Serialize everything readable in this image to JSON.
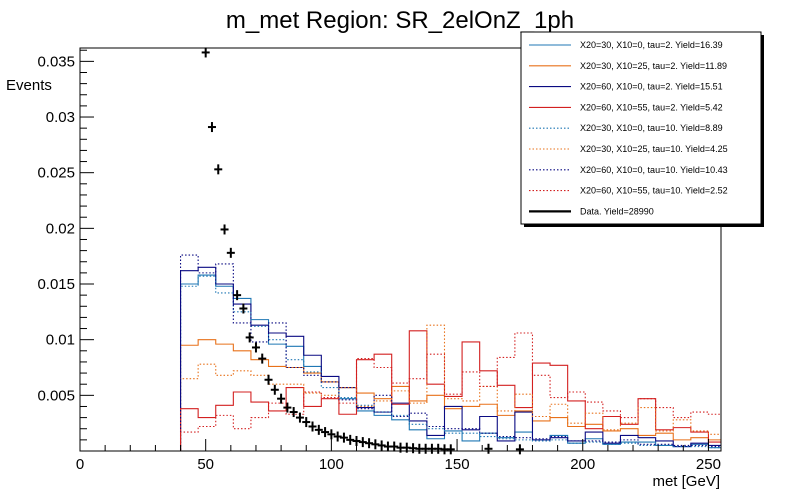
{
  "chart_data": {
    "type": "histogram",
    "title": "m_met Region: SR_2elOnZ_1ph",
    "xlabel": "met [GeV]",
    "ylabel": "Events",
    "xlim": [
      0,
      255
    ],
    "ylim": [
      0,
      0.0362
    ],
    "xticks": [
      0,
      50,
      100,
      150,
      200,
      250
    ],
    "xtick_labels": [
      "0",
      "50",
      "100",
      "150",
      "200",
      "250"
    ],
    "yticks": [
      0.005,
      0.01,
      0.015,
      0.02,
      0.025,
      0.03,
      0.035
    ],
    "ytick_labels": [
      "0.005",
      "0.01",
      "0.015",
      "0.02",
      "0.025",
      "0.03",
      "0.035"
    ],
    "bin_edges": [
      40,
      47,
      54,
      61,
      68,
      75,
      82,
      89,
      96,
      103,
      110,
      117,
      124,
      131,
      138,
      145,
      152,
      159,
      166,
      173,
      180,
      187,
      194,
      201,
      208,
      215,
      222,
      229,
      236,
      243,
      250,
      255
    ],
    "series": [
      {
        "name": "X20=30, X10=0, tau=2. Yield=16.39",
        "color": "#1f77b4",
        "style": "solid",
        "values": [
          0.015,
          0.0158,
          0.0148,
          0.0137,
          0.0118,
          0.0096,
          0.0094,
          0.0076,
          0.0062,
          0.0047,
          0.0036,
          0.0032,
          0.0028,
          0.0019,
          0.0011,
          0.0018,
          0.0009,
          0.0016,
          0.0012,
          0.0017,
          0.001,
          0.0014,
          0.0007,
          0.0011,
          0.0006,
          0.0008,
          0.0008,
          0.0005,
          0.0004,
          0.0006,
          0.0003
        ]
      },
      {
        "name": "X20=30, X10=25, tau=2. Yield=11.89",
        "color": "#e8711a",
        "style": "solid",
        "values": [
          0.0095,
          0.01,
          0.0096,
          0.009,
          0.0082,
          0.0076,
          0.0075,
          0.007,
          0.0062,
          0.0057,
          0.0052,
          0.0047,
          0.0058,
          0.0045,
          0.005,
          0.0038,
          0.004,
          0.0042,
          0.0032,
          0.0036,
          0.0027,
          0.003,
          0.0022,
          0.0024,
          0.0018,
          0.002,
          0.0014,
          0.0016,
          0.001,
          0.0012,
          0.001
        ]
      },
      {
        "name": "X20=60, X10=0, tau=2. Yield=15.51",
        "color": "#0a0a82",
        "style": "solid",
        "values": [
          0.0162,
          0.0165,
          0.015,
          0.0132,
          0.0113,
          0.0106,
          0.0103,
          0.0086,
          0.0067,
          0.0057,
          0.0039,
          0.0035,
          0.0043,
          0.0027,
          0.0014,
          0.004,
          0.0019,
          0.0031,
          0.0009,
          0.0035,
          0.001,
          0.0012,
          0.0009,
          0.0017,
          0.0007,
          0.0014,
          0.0012,
          0.0009,
          0.0004,
          0.0007,
          0.0005
        ]
      },
      {
        "name": "X20=60, X10=55, tau=2. Yield=5.42",
        "color": "#d32020",
        "style": "solid",
        "values": [
          0.0038,
          0.003,
          0.0041,
          0.0053,
          0.0044,
          0.0036,
          0.0057,
          0.004,
          0.0047,
          0.0033,
          0.0082,
          0.0087,
          0.0042,
          0.0108,
          0.006,
          0.0049,
          0.0098,
          0.0072,
          0.0059,
          0.0039,
          0.0079,
          0.0077,
          0.0045,
          0.002,
          0.0031,
          0.0024,
          0.0047,
          0.0019,
          0.0021,
          0.0017,
          0.0008
        ]
      },
      {
        "name": "X20=30, X10=0, tau=10. Yield=8.89",
        "color": "#1f77b4",
        "style": "dotted",
        "values": [
          0.0148,
          0.0157,
          0.0142,
          0.0125,
          0.0112,
          0.01,
          0.0082,
          0.0071,
          0.0057,
          0.0048,
          0.0041,
          0.0035,
          0.0032,
          0.0024,
          0.002,
          0.0016,
          0.0016,
          0.0013,
          0.0011,
          0.001,
          0.0009,
          0.001,
          0.0007,
          0.0008,
          0.0006,
          0.0007,
          0.0005,
          0.0005,
          0.0004,
          0.0004,
          0.0003
        ]
      },
      {
        "name": "X20=30, X10=25, tau=10. Yield=4.25",
        "color": "#e8711a",
        "style": "dotted",
        "values": [
          0.0065,
          0.0078,
          0.0068,
          0.0072,
          0.0068,
          0.006,
          0.006,
          0.0052,
          0.005,
          0.0057,
          0.004,
          0.0045,
          0.0054,
          0.0043,
          0.0113,
          0.0047,
          0.0045,
          0.0058,
          0.0036,
          0.0051,
          0.0031,
          0.0042,
          0.0025,
          0.0034,
          0.0019,
          0.0025,
          0.0039,
          0.0018,
          0.0028,
          0.0018,
          0.0015
        ]
      },
      {
        "name": "X20=60, X10=0, tau=10. Yield=10.43",
        "color": "#0a0a82",
        "style": "dotted",
        "values": [
          0.0176,
          0.016,
          0.0168,
          0.0115,
          0.0098,
          0.0115,
          0.0075,
          0.0068,
          0.0062,
          0.0046,
          0.0038,
          0.005,
          0.0031,
          0.0034,
          0.0022,
          0.002,
          0.002,
          0.0016,
          0.0013,
          0.0012,
          0.0011,
          0.0013,
          0.0009,
          0.0009,
          0.0008,
          0.001,
          0.0006,
          0.0006,
          0.0005,
          0.0005,
          0.0004
        ]
      },
      {
        "name": "X20=60, X10=55, tau=10. Yield=2.52",
        "color": "#d32020",
        "style": "dotted",
        "values": [
          0.0017,
          0.0022,
          0.0032,
          0.002,
          0.003,
          0.0043,
          0.0033,
          0.0053,
          0.0048,
          0.0043,
          0.0083,
          0.0075,
          0.0061,
          0.0065,
          0.0087,
          0.0051,
          0.0071,
          0.0058,
          0.0084,
          0.0106,
          0.0068,
          0.0048,
          0.0053,
          0.0044,
          0.0036,
          0.003,
          0.0047,
          0.0039,
          0.003,
          0.0035,
          0.0033
        ]
      }
    ],
    "data": {
      "name": "Data. Yield=28990",
      "color": "#000000",
      "points": [
        {
          "x": 50,
          "y": 0.0358
        },
        {
          "x": 52.5,
          "y": 0.0291
        },
        {
          "x": 55,
          "y": 0.0253
        },
        {
          "x": 57.5,
          "y": 0.0199
        },
        {
          "x": 60,
          "y": 0.0178
        },
        {
          "x": 62.5,
          "y": 0.014
        },
        {
          "x": 65,
          "y": 0.0128
        },
        {
          "x": 67.5,
          "y": 0.0102
        },
        {
          "x": 70,
          "y": 0.0093
        },
        {
          "x": 72.5,
          "y": 0.0083
        },
        {
          "x": 75,
          "y": 0.0064
        },
        {
          "x": 77.5,
          "y": 0.0055
        },
        {
          "x": 80,
          "y": 0.0047
        },
        {
          "x": 82.5,
          "y": 0.0039
        },
        {
          "x": 85,
          "y": 0.0035
        },
        {
          "x": 87.5,
          "y": 0.003
        },
        {
          "x": 90,
          "y": 0.0026
        },
        {
          "x": 92.5,
          "y": 0.0022
        },
        {
          "x": 95,
          "y": 0.0019
        },
        {
          "x": 97.5,
          "y": 0.0017
        },
        {
          "x": 100,
          "y": 0.0015
        },
        {
          "x": 102.5,
          "y": 0.0013
        },
        {
          "x": 105,
          "y": 0.0012
        },
        {
          "x": 107.5,
          "y": 0.001
        },
        {
          "x": 110,
          "y": 0.0009
        },
        {
          "x": 112.5,
          "y": 0.0008
        },
        {
          "x": 115,
          "y": 0.0007
        },
        {
          "x": 117.5,
          "y": 0.0006
        },
        {
          "x": 120,
          "y": 0.0005
        },
        {
          "x": 122.5,
          "y": 0.0004
        },
        {
          "x": 125,
          "y": 0.0004
        },
        {
          "x": 127.5,
          "y": 0.0003
        },
        {
          "x": 130,
          "y": 0.0003
        },
        {
          "x": 132.5,
          "y": 0.00025
        },
        {
          "x": 135,
          "y": 0.0002
        },
        {
          "x": 137.5,
          "y": 0.0002
        },
        {
          "x": 140,
          "y": 0.0002
        },
        {
          "x": 142.5,
          "y": 0.0002
        },
        {
          "x": 145,
          "y": 0.00015
        },
        {
          "x": 147.5,
          "y": 0.00015
        },
        {
          "x": 162.5,
          "y": 0.0002
        },
        {
          "x": 175,
          "y": 0.00015
        }
      ]
    },
    "legend_position": "top-right"
  }
}
